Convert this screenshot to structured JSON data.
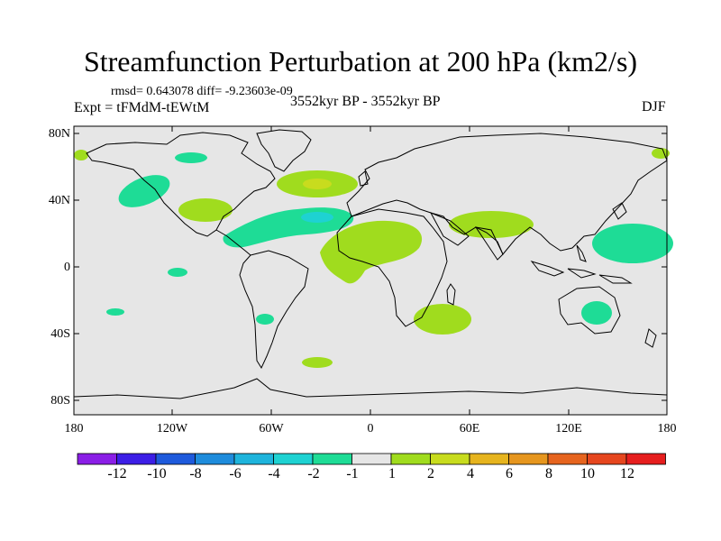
{
  "figure": {
    "title": "Streamfunction Perturbation at 200 hPa (km2/s)",
    "stats": "rmsd= 0.643078 diff= -9.23603e-09",
    "experiment": "Expt = tFMdM-tEWtM",
    "period": "3552kyr BP - 3552kyr BP",
    "season": "DJF"
  },
  "axes": {
    "lat_labels": [
      "80N",
      "40N",
      "0",
      "40S",
      "80S"
    ],
    "lon_labels": [
      "180",
      "120W",
      "60W",
      "0",
      "60E",
      "120E",
      "180"
    ]
  },
  "colorbar": {
    "colors": [
      "#8a1ee6",
      "#3c1ee6",
      "#1e5adc",
      "#1e8cdc",
      "#1eb4dc",
      "#1ed2d2",
      "#1edc96",
      "#e6e6e6",
      "#a0dc1e",
      "#c8dc1e",
      "#e6b41e",
      "#e6961e",
      "#e6641e",
      "#e6461e",
      "#e61e1e"
    ],
    "labels": [
      "-12",
      "-10",
      "-8",
      "-6",
      "-4",
      "-2",
      "-1",
      "1",
      "2",
      "4",
      "6",
      "8",
      "10",
      "12"
    ]
  },
  "legend_colors": {
    "background_zero": "#e6e6e6",
    "pos_light": "#a0dc1e",
    "pos_mid": "#c8dc1e",
    "pos_strong": "#e6b41e",
    "neg_light": "#1edc96",
    "neg_mid": "#1ed2d2",
    "neg_strong": "#1eb4dc"
  }
}
